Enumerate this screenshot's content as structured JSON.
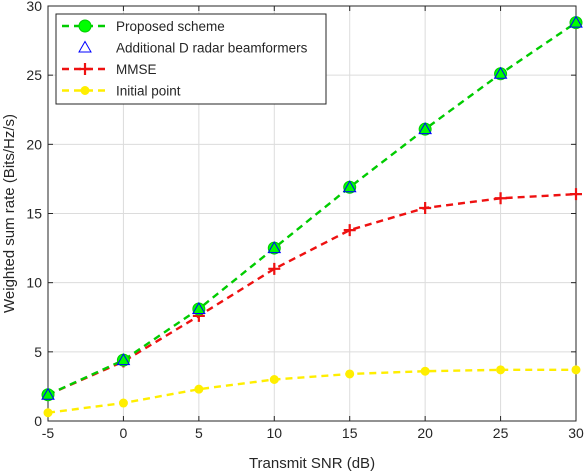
{
  "chart_data": {
    "type": "line",
    "title": "",
    "xlabel": "Transmit SNR (dB)",
    "ylabel": "Weighted sum rate (Bits/Hz/s)",
    "x": [
      -5,
      0,
      5,
      10,
      15,
      20,
      25,
      30
    ],
    "xlim": [
      -5,
      30
    ],
    "ylim": [
      0,
      30
    ],
    "xticks": [
      -5,
      0,
      5,
      10,
      15,
      20,
      25,
      30
    ],
    "yticks": [
      0,
      5,
      10,
      15,
      20,
      25,
      30
    ],
    "grid": true,
    "legend_position": "top-left",
    "series": [
      {
        "name": "Proposed scheme",
        "values": [
          1.9,
          4.4,
          8.1,
          12.5,
          16.9,
          21.1,
          25.1,
          28.8
        ],
        "color": "#00cc00",
        "line_style": "dashed",
        "marker": "circle",
        "marker_fill": "#00ff00"
      },
      {
        "name": "Additional D radar beamformers",
        "values": [
          1.9,
          4.4,
          8.1,
          12.5,
          16.9,
          21.1,
          25.1,
          28.8
        ],
        "color": "#0000ff",
        "line_style": "none",
        "marker": "triangle",
        "marker_fill": "none"
      },
      {
        "name": "MMSE",
        "values": [
          1.9,
          4.3,
          7.6,
          11.0,
          13.8,
          15.4,
          16.1,
          16.4
        ],
        "color": "#ee1111",
        "line_style": "dashed",
        "marker": "plus",
        "marker_fill": "none"
      },
      {
        "name": "Initial point",
        "values": [
          0.6,
          1.3,
          2.3,
          3.0,
          3.4,
          3.6,
          3.7,
          3.7
        ],
        "color": "#ffee00",
        "line_style": "dashed",
        "marker": "dot",
        "marker_fill": "#ffee00"
      }
    ]
  }
}
